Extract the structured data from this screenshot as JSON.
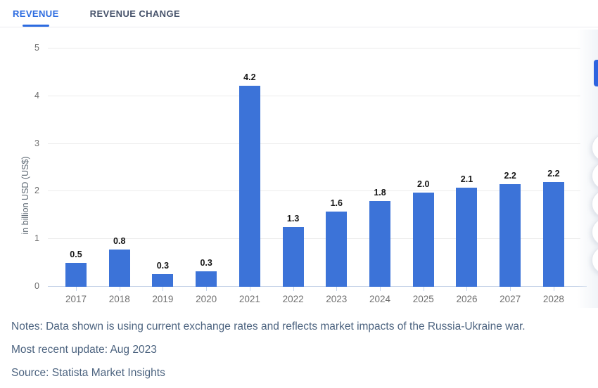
{
  "tabs": {
    "revenue": "REVENUE",
    "revenue_change": "REVENUE CHANGE"
  },
  "chart_data": {
    "type": "bar",
    "title": "",
    "categories": [
      "2017",
      "2018",
      "2019",
      "2020",
      "2021",
      "2022",
      "2023",
      "2024",
      "2025",
      "2026",
      "2027",
      "2028"
    ],
    "values": [
      0.5,
      0.78,
      0.27,
      0.33,
      4.22,
      1.25,
      1.58,
      1.8,
      1.97,
      2.08,
      2.16,
      2.2
    ],
    "bar_labels": [
      "0.5",
      "0.8",
      "0.3",
      "0.3",
      "4.2",
      "1.3",
      "1.6",
      "1.8",
      "2.0",
      "2.1",
      "2.2",
      "2.2"
    ],
    "xlabel": "",
    "ylabel": "in billion USD (US$)",
    "ylim": [
      0,
      5
    ],
    "yticks": [
      0,
      1,
      2,
      3,
      4,
      5
    ],
    "grid": true,
    "legend_position": "none",
    "bar_color": "#3c73d8"
  },
  "footer": {
    "notes": "Notes: Data shown is using current exchange rates and reflects market impacts of the Russia-Ukraine war.",
    "most_recent_update": "Most recent update: Aug 2023",
    "source": "Source: Statista Market Insights"
  },
  "colors": {
    "accent_blue": "#2c6be0",
    "bar_blue": "#3c73d8",
    "axis_line": "#c5d3e8",
    "gridline": "#ebebeb",
    "footer_text": "#4d6480"
  },
  "side_toolbar": {
    "button_color": "#2d63df",
    "circle_count": 5
  }
}
